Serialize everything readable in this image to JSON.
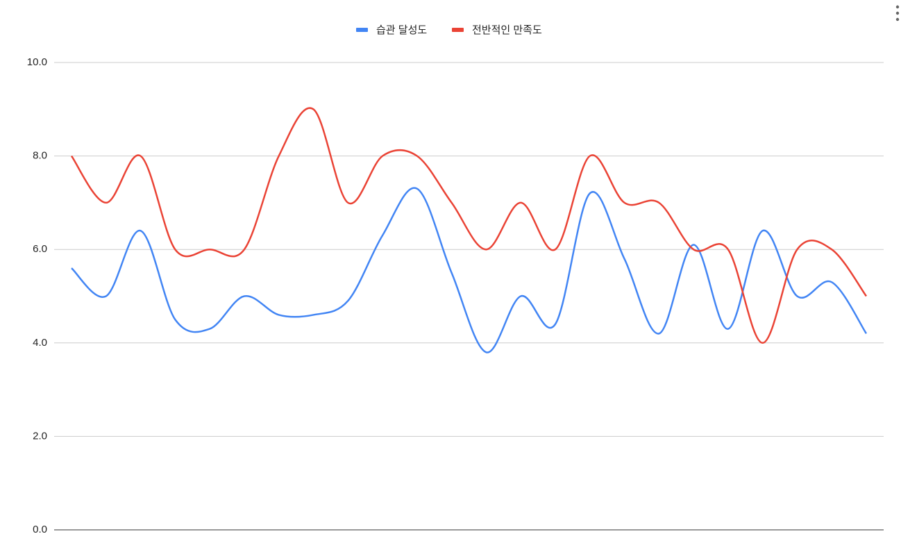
{
  "chart_data": {
    "type": "line",
    "categories": [
      null,
      null,
      null,
      null,
      null,
      null,
      null,
      null,
      null,
      null,
      null,
      null,
      null,
      null,
      null,
      null,
      null,
      null,
      null,
      null,
      null,
      null,
      null,
      null
    ],
    "series": [
      {
        "name": "습관 달성도",
        "color": "#4285f4",
        "values": [
          5.6,
          5.0,
          6.4,
          4.5,
          4.3,
          5.0,
          4.6,
          4.6,
          4.9,
          6.3,
          7.3,
          5.5,
          3.8,
          5.0,
          4.4,
          7.2,
          5.8,
          4.2,
          6.1,
          4.3,
          6.4,
          5.0,
          5.3,
          4.2
        ]
      },
      {
        "name": "전반적인 만족도",
        "color": "#ea4335",
        "values": [
          8,
          7,
          8,
          6,
          6,
          6,
          8,
          9,
          7,
          8,
          8,
          7,
          6,
          7,
          6,
          8,
          7,
          7,
          6,
          6,
          4,
          6,
          6,
          5
        ]
      }
    ],
    "ylim": [
      0,
      10
    ],
    "yticks": [
      {
        "value": 0,
        "label": "0.0"
      },
      {
        "value": 2,
        "label": "2.0"
      },
      {
        "value": 4,
        "label": "4.0"
      },
      {
        "value": 6,
        "label": "6.0"
      },
      {
        "value": 8,
        "label": "8.0"
      },
      {
        "value": 10,
        "label": "10.0"
      }
    ],
    "grid": true,
    "legend": "top",
    "smooth": true
  }
}
